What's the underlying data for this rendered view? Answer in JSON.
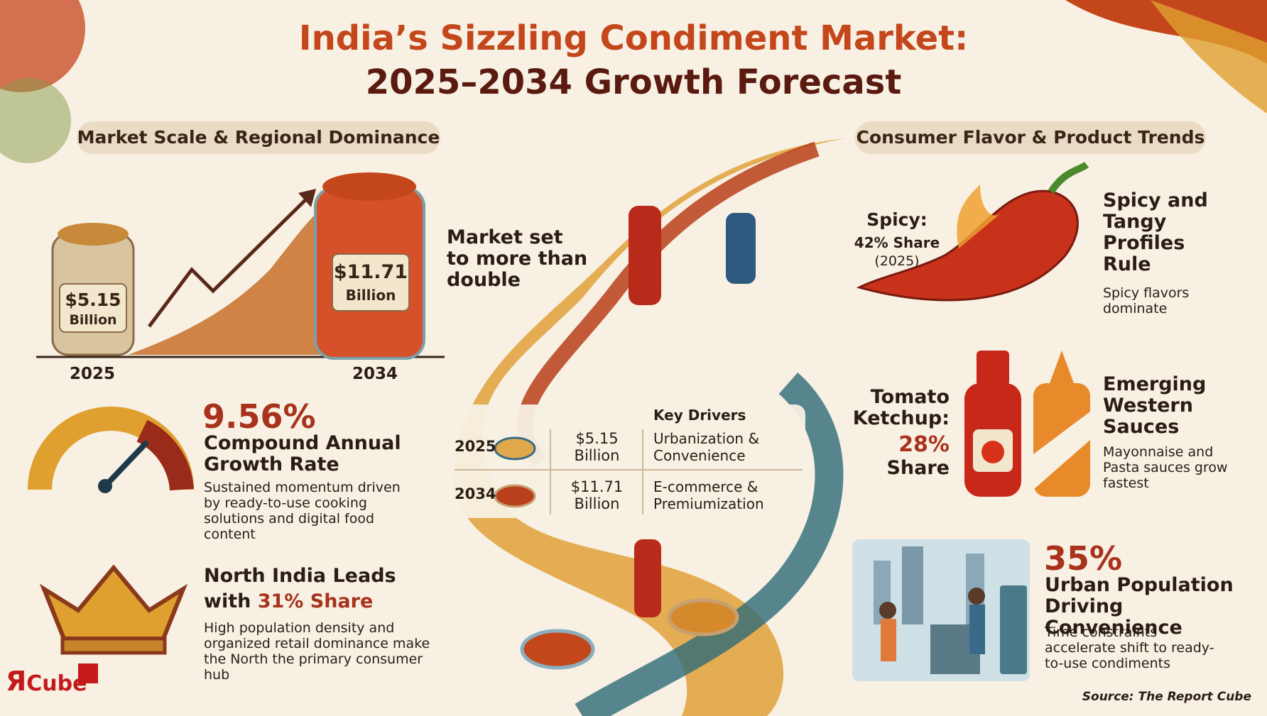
{
  "header": {
    "title_line1": "India’s Sizzling Condiment Market:",
    "title_line2": "2025–2034 Growth Forecast"
  },
  "left_panel": {
    "heading": "Market Scale & Regional Dominance",
    "market_scale": {
      "start": {
        "year": "2025",
        "value": "$5.15",
        "unit": "Billion"
      },
      "end": {
        "year": "2034",
        "value": "$11.71",
        "unit": "Billion"
      },
      "caption": "Market set to more than double"
    },
    "cagr": {
      "value": "9.56%",
      "label": "Compound Annual Growth Rate",
      "description": "Sustained momentum driven by ready-to-use cooking solutions and digital food content"
    },
    "region": {
      "title_line1": "North India Leads",
      "title_prefix": "with",
      "highlight": "31% Share",
      "description": "High population density and organized retail dominance make the North the primary consumer hub"
    }
  },
  "center_table": {
    "header": "Key Drivers",
    "rows": [
      [
        "2025",
        "$5.15 Billion",
        "Urbanization & Convenience"
      ],
      [
        "2034",
        "$11.71 Billion",
        "E-commerce & Premiumization"
      ]
    ]
  },
  "right_panel": {
    "heading": "Consumer Flavor & Product Trends",
    "spicy": {
      "label": "Spicy:",
      "share": "42% Share",
      "year": "(2025)",
      "title": "Spicy and Tangy Profiles Rule",
      "description": "Spicy flavors dominate"
    },
    "ketchup": {
      "label": "Tomato Ketchup:",
      "share": "28%",
      "share_word": "Share",
      "title": "Emerging Western Sauces",
      "description": "Mayonnaise and Pasta sauces grow fastest"
    },
    "urban": {
      "value": "35%",
      "title": "Urban Population Driving Convenience",
      "description": "Time constraints accelerate shift to ready-to-use condiments"
    }
  },
  "logo": {
    "mark": "Я",
    "text": "Cube"
  },
  "source": "Source: The Report Cube"
}
